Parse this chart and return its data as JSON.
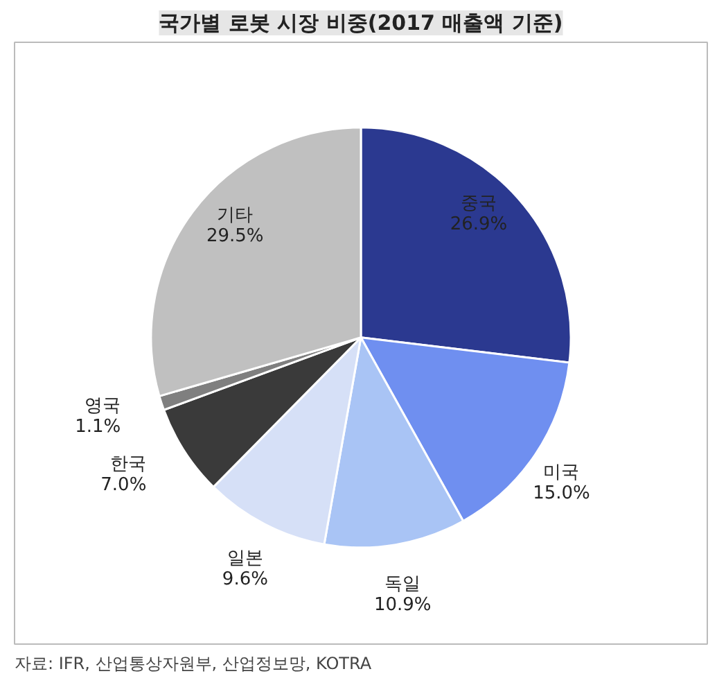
{
  "chart_data": {
    "type": "pie",
    "title": "국가별 로봇 시장 비중(2017 매출액 기준)",
    "categories": [
      "중국",
      "미국",
      "독일",
      "일본",
      "한국",
      "영국",
      "기타"
    ],
    "values": [
      26.9,
      15.0,
      10.9,
      9.6,
      7.0,
      1.1,
      29.5
    ],
    "colors": [
      "#2b3990",
      "#6f8ff0",
      "#a9c4f5",
      "#d6e0f7",
      "#3a3a3a",
      "#7f7f7f",
      "#c0c0c0"
    ],
    "value_labels": [
      "26.9%",
      "15.0%",
      "10.9%",
      "9.6%",
      "7.0%",
      "1.1%",
      "29.5%"
    ],
    "annotations": [
      "자료: IFR, 산업통상자원부, 산업정보망, KOTRA"
    ]
  }
}
